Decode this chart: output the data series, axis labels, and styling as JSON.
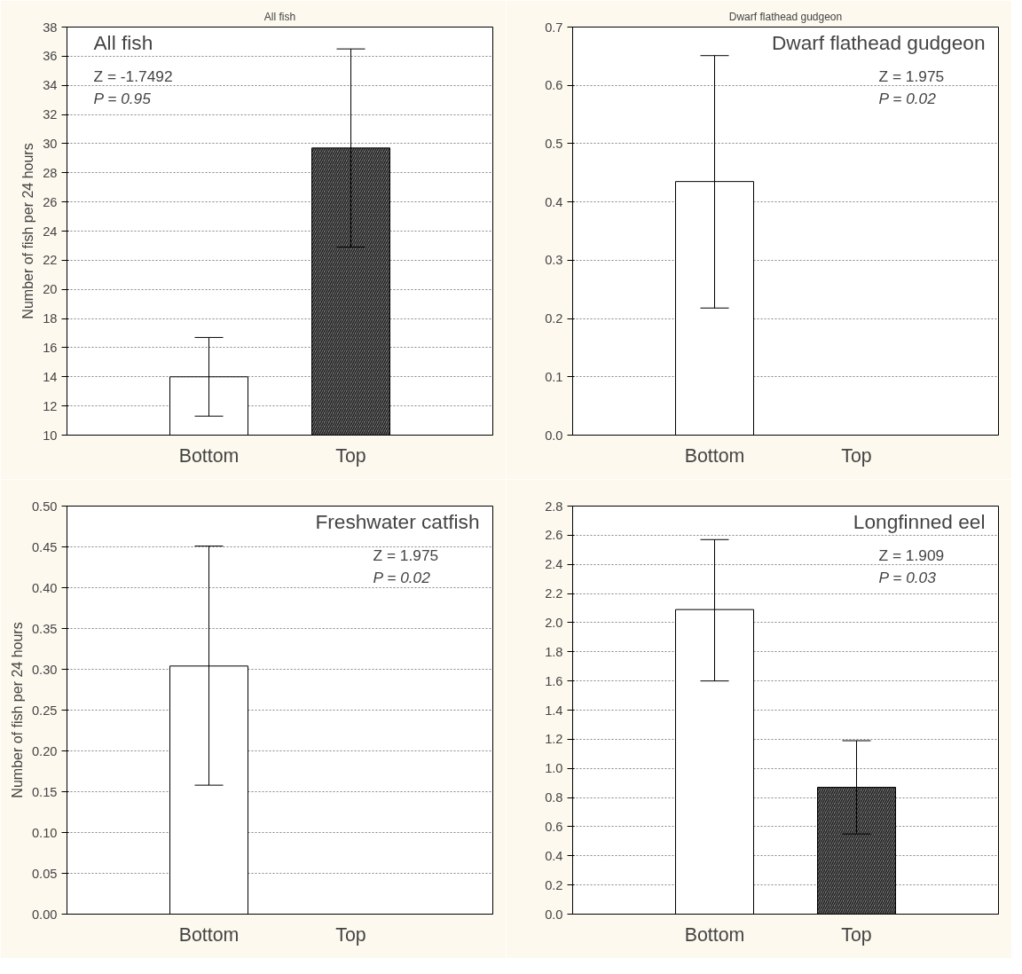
{
  "chart_data": [
    {
      "type": "bar",
      "title": "All fish",
      "ylabel": "Number of fish per 24 hours",
      "categories": [
        "Bottom",
        "Top"
      ],
      "values": [
        14.0,
        29.7
      ],
      "colors": [
        "#ffffff",
        "#7f7f7f"
      ],
      "errors": [
        [
          11.3,
          16.7
        ],
        [
          22.9,
          36.5
        ]
      ],
      "ylim": [
        10,
        38
      ],
      "yticks": [
        10,
        12,
        14,
        16,
        18,
        20,
        22,
        24,
        26,
        28,
        30,
        32,
        34,
        36,
        38
      ],
      "grid": "y",
      "annotations": [
        "All fish",
        "Z = -1.7492",
        "P = 0.95"
      ]
    },
    {
      "type": "bar",
      "title": "Dwarf flathead gudgeon",
      "categories": [
        "Bottom",
        "Top"
      ],
      "values": [
        0.435,
        0
      ],
      "colors": [
        "#ffffff",
        "#000000"
      ],
      "errors": [
        [
          0.218,
          0.651
        ],
        null
      ],
      "ylim": [
        0,
        0.7
      ],
      "yticks": [
        {
          "value": 0,
          "label": "0.0"
        },
        0.1,
        0.2,
        0.3,
        0.4,
        0.5,
        0.6,
        0.7
      ],
      "grid": "y",
      "annotations": [
        "Dwarf flathead gudgeon",
        "Z = 1.975",
        "P = 0.02"
      ]
    },
    {
      "type": "bar",
      "ylabel": "Number of fish per 24 hours",
      "categories": [
        "Bottom",
        "Top"
      ],
      "values": [
        0.304,
        0
      ],
      "colors": [
        "#ffffff",
        "#000000"
      ],
      "errors": [
        [
          0.158,
          0.451
        ],
        null
      ],
      "ylim": [
        0,
        0.5
      ],
      "yticks": [
        {
          "value": 0,
          "label": "0.00"
        },
        0.05,
        {
          "value": 0.1,
          "label": "0.10"
        },
        0.15,
        {
          "value": 0.2,
          "label": "0.20"
        },
        0.25,
        {
          "value": 0.3,
          "label": "0.30"
        },
        0.35,
        {
          "value": 0.4,
          "label": "0.40"
        },
        0.45,
        {
          "value": 0.5,
          "label": "0.50"
        }
      ],
      "grid": "y",
      "annotations": [
        "Freshwater catfish",
        "Z = 1.975",
        "P = 0.02"
      ]
    },
    {
      "type": "bar",
      "categories": [
        "Bottom",
        "Top"
      ],
      "values": [
        2.09,
        0.87
      ],
      "colors": [
        "#ffffff",
        "#7f7f7f"
      ],
      "errors": [
        [
          1.6,
          2.57
        ],
        [
          0.55,
          1.19
        ]
      ],
      "ylim": [
        0,
        2.8
      ],
      "yticks": [
        {
          "value": 0,
          "label": "0.0"
        },
        0.2,
        0.4,
        0.6,
        0.8,
        {
          "value": 1.0,
          "label": "1.0"
        },
        1.2,
        1.4,
        1.6,
        1.8,
        {
          "value": 2.0,
          "label": "2.0"
        },
        2.2,
        2.4,
        2.6,
        2.8
      ],
      "grid": "y",
      "annotations": [
        "Longfinned eel",
        "Z = 1.909",
        "P = 0.03"
      ]
    }
  ]
}
